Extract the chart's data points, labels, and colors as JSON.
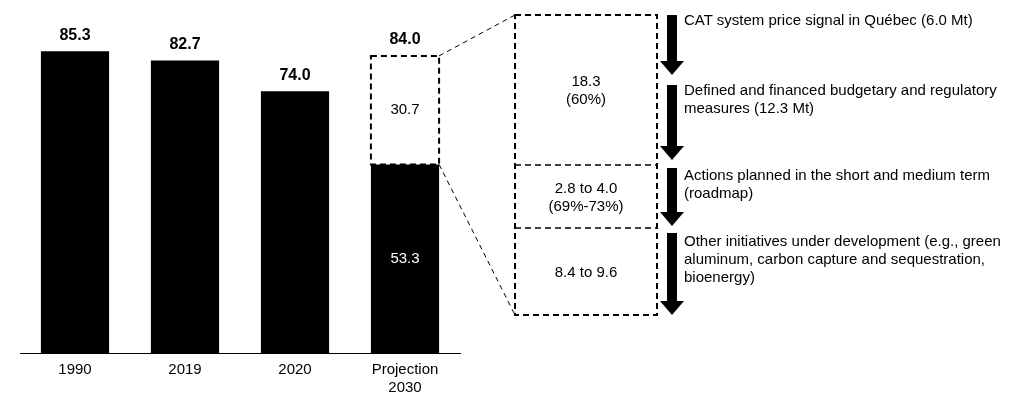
{
  "chart_data": {
    "type": "bar",
    "stacked": true,
    "categories": [
      "1990",
      "2019",
      "2020",
      "Projection\n2030"
    ],
    "series": [
      {
        "color": "#000000",
        "values": [
          85.3,
          82.7,
          74.0,
          53.3
        ],
        "value_labels": [
          null,
          null,
          null,
          "53.3"
        ]
      },
      {
        "color": "#ffffff",
        "line_style": "dashed",
        "values": [
          null,
          null,
          null,
          30.7
        ],
        "value_labels": [
          null,
          null,
          null,
          "30.7"
        ]
      }
    ],
    "totals": [
      "85.3",
      "82.7",
      "74.0",
      "84.0"
    ],
    "tick_labels": "x",
    "grid": false,
    "legend": false,
    "annotations": [
      "18.3\n(60%)",
      "2.8 to 4.0\n(69%-73%)",
      "8.4 to 9.6",
      "CAT system price signal in Québec (6.0 Mt)",
      "Defined and financed budgetary and regulatory measures (12.3 Mt)",
      "Actions planned in the short and medium term (roadmap)",
      "Other initiatives under development (e.g., green aluminum, carbon capture and sequestration, bioenergy)"
    ]
  }
}
